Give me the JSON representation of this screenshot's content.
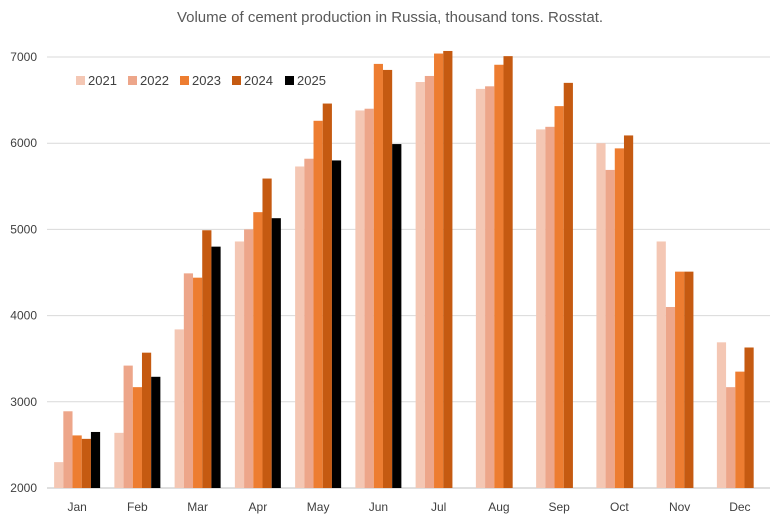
{
  "chart_data": {
    "type": "bar",
    "title": "Volume of cement production in Russia, thousand tons. Rosstat.",
    "xlabel": "",
    "ylabel": "",
    "categories": [
      "Jan",
      "Feb",
      "Mar",
      "Apr",
      "May",
      "Jun",
      "Jul",
      "Aug",
      "Sep",
      "Oct",
      "Nov",
      "Dec"
    ],
    "ylim": [
      2000,
      7000
    ],
    "yticks": [
      "2000",
      "3000",
      "4000",
      "5000",
      "6000",
      "7000"
    ],
    "grid": true,
    "legend_position": "top-left",
    "series": [
      {
        "name": "2021",
        "color": "#f4c7b4",
        "values": [
          2300,
          2640,
          3840,
          4860,
          5730,
          6380,
          6710,
          6630,
          6160,
          6000,
          4860,
          3690
        ]
      },
      {
        "name": "2022",
        "color": "#eda68a",
        "values": [
          2890,
          3420,
          4490,
          5000,
          5820,
          6400,
          6780,
          6660,
          6190,
          5690,
          4100,
          3170
        ]
      },
      {
        "name": "2023",
        "color": "#ed7d31",
        "values": [
          2610,
          3170,
          4440,
          5200,
          6260,
          6920,
          7040,
          6910,
          6430,
          5940,
          4510,
          3350
        ]
      },
      {
        "name": "2024",
        "color": "#c55a11",
        "values": [
          2570,
          3570,
          4990,
          5590,
          6460,
          6850,
          7070,
          7010,
          6700,
          6090,
          4510,
          3630
        ]
      },
      {
        "name": "2025",
        "color": "#000000",
        "values": [
          2650,
          3290,
          4800,
          5130,
          5800,
          5990,
          null,
          null,
          null,
          null,
          null,
          null
        ]
      }
    ]
  }
}
